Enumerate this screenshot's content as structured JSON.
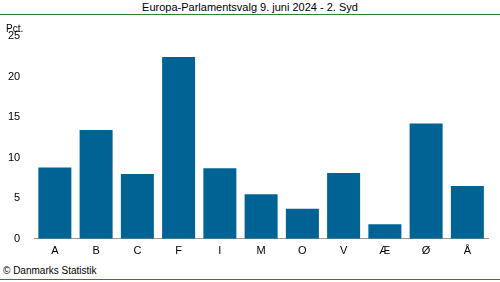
{
  "chart_data": {
    "type": "bar",
    "title": "Europa-Parlamentsvalg 9. juni 2024 - 2. Syd",
    "y_label": "Pct.",
    "source": "© Danmarks Statistik",
    "categories": [
      "A",
      "B",
      "C",
      "F",
      "I",
      "M",
      "O",
      "V",
      "Æ",
      "Ø",
      "Å"
    ],
    "values": [
      8.8,
      13.4,
      8.0,
      22.4,
      8.7,
      5.5,
      3.7,
      8.1,
      1.8,
      14.2,
      6.5
    ],
    "color": "#006394",
    "ylim": [
      0,
      25
    ],
    "yticks": [
      0,
      5,
      10,
      15,
      20,
      25
    ],
    "grid": false
  }
}
